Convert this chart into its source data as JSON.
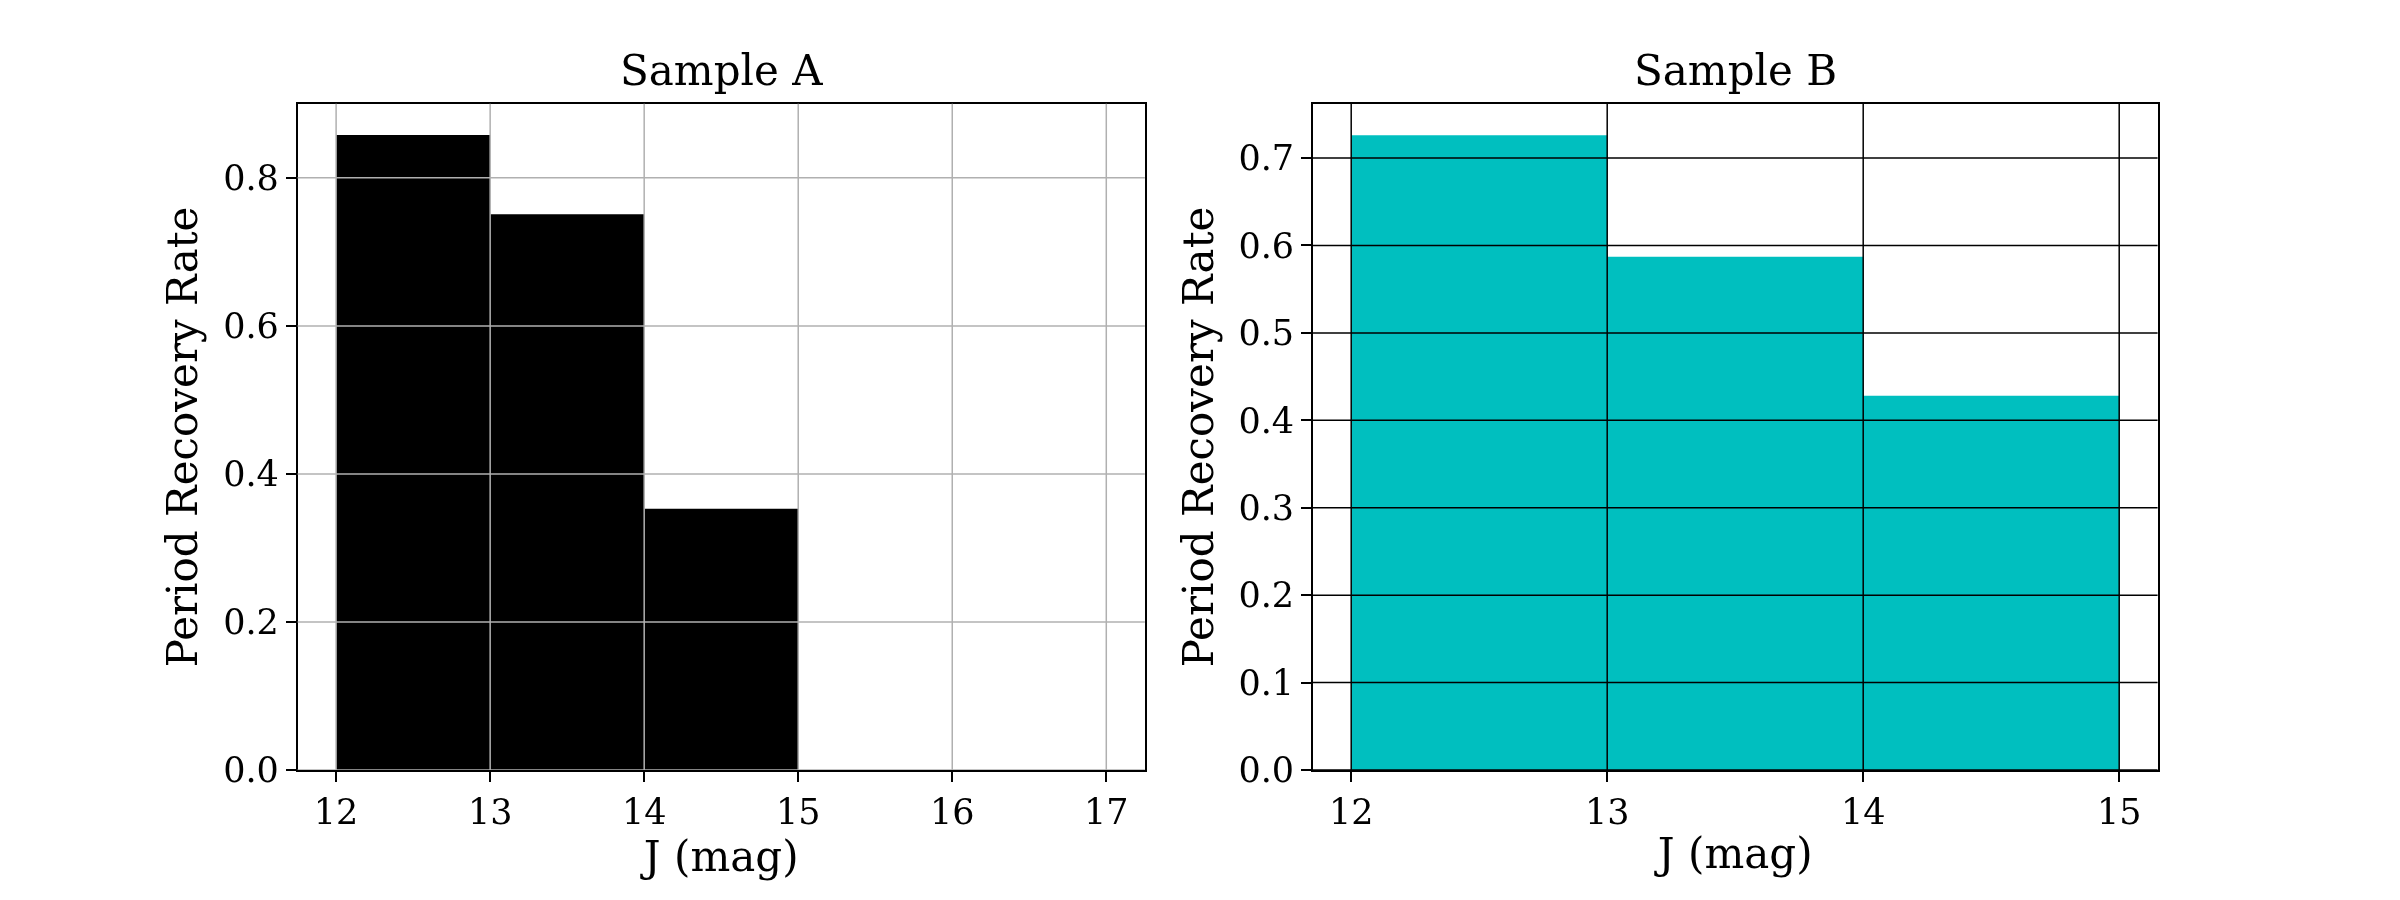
{
  "chart_data": [
    {
      "type": "histogram",
      "title": "Sample A",
      "xlabel": "J (mag)",
      "ylabel": "Period Recovery Rate",
      "bins": [
        12,
        13,
        14,
        15
      ],
      "values": [
        0.858,
        0.751,
        0.353
      ],
      "color": "#000000",
      "xlim": [
        11.75,
        17.25
      ],
      "xticks": [
        12,
        13,
        14,
        15,
        16,
        17
      ],
      "ylim": [
        0,
        0.9
      ],
      "yticks": [
        {
          "value": 0,
          "label": "0.0"
        },
        0.2,
        0.4,
        0.6,
        0.8
      ],
      "grid": true
    },
    {
      "type": "histogram",
      "title": "Sample B",
      "xlabel": "J (mag)",
      "ylabel": "Period Recovery Rate",
      "bins": [
        12,
        13,
        14,
        15
      ],
      "values": [
        0.726,
        0.587,
        0.428
      ],
      "color": "#00bfbf",
      "xlim": [
        11.85,
        15.15
      ],
      "xticks": [
        12,
        13,
        14,
        15
      ],
      "ylim": [
        0,
        0.762
      ],
      "yticks": [
        {
          "value": 0,
          "label": "0.0"
        },
        0.1,
        0.2,
        0.3,
        0.4,
        0.5,
        0.6,
        0.7
      ],
      "grid": true
    }
  ]
}
